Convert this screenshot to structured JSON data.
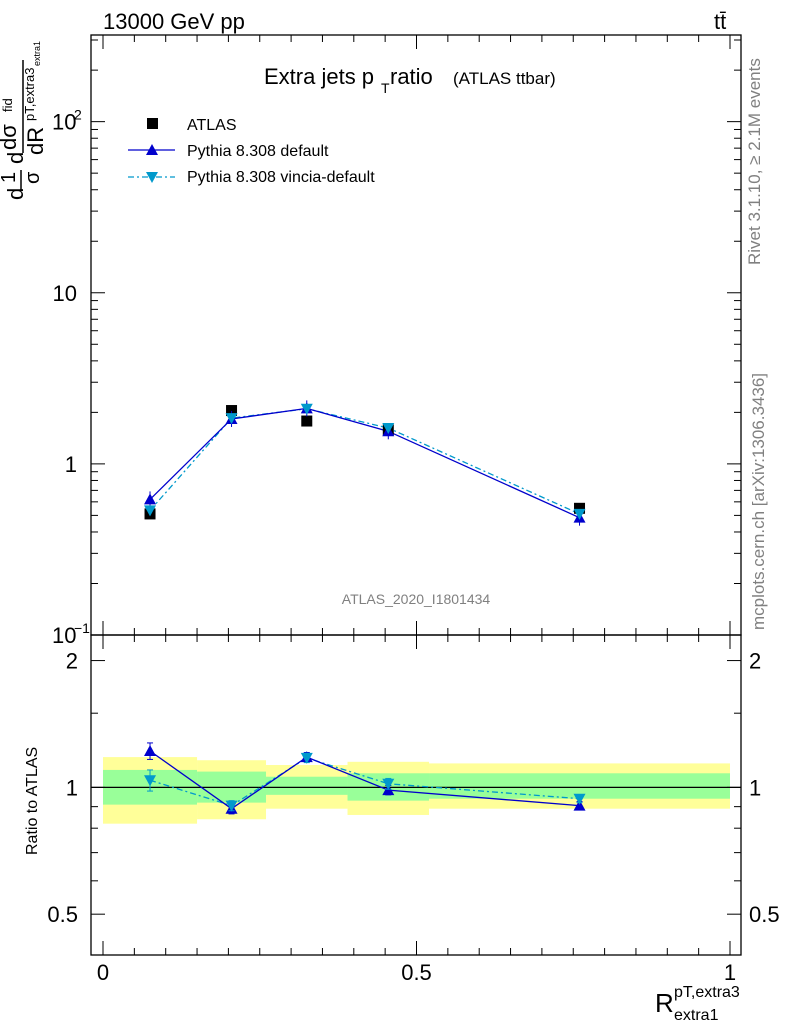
{
  "header": {
    "left": "13000 GeV pp",
    "right": "tt̄",
    "title_main": "Extra jets p",
    "title_sub": "T",
    "title_rest": " ratio",
    "title_small": "(ATLAS ttbar)",
    "analysis_id": "ATLAS_2020_I1801434",
    "side_top": "Rivet 3.1.10, ≥ 2.1M events",
    "side_bottom": "mcplots.cern.ch [arXiv:1306.3436]"
  },
  "axes": {
    "main_ylabel_parts": [
      "1",
      "σ",
      "dσ",
      "fid",
      "dR",
      "pT,extra3",
      "extra1",
      "d",
      "d"
    ],
    "ratio_ylabel": "Ratio to ATLAS",
    "xlabel_main": "R",
    "xlabel_sup": "pT,extra3",
    "xlabel_sub": "extra1",
    "main_yticks": [
      {
        "label": "10",
        "exp": "−1",
        "value": 0.1
      },
      {
        "label": "1",
        "exp": "",
        "value": 1
      },
      {
        "label": "10",
        "exp": "",
        "value": 10
      },
      {
        "label": "10",
        "exp": "2",
        "value": 100
      }
    ],
    "ratio_yticks": [
      {
        "label": "0.5",
        "value": 0.5
      },
      {
        "label": "1",
        "value": 1
      },
      {
        "label": "2",
        "value": 2
      }
    ],
    "xticks": [
      {
        "label": "0",
        "value": 0
      },
      {
        "label": "0.5",
        "value": 0.5
      },
      {
        "label": "1",
        "value": 1
      }
    ]
  },
  "legend": {
    "atlas": "ATLAS",
    "default": "Pythia 8.308 default",
    "vincia": "Pythia 8.308 vincia-default"
  },
  "chart_data": {
    "type": "line",
    "title": "Extra jets pT ratio (ATLAS ttbar)",
    "xlabel": "R extra1 pT,extra3",
    "ylabel": "1/σ dσ fid / dR",
    "xlim": [
      0,
      1
    ],
    "ylim": [
      0.1,
      300
    ],
    "yscale": "log",
    "ratio_ylim": [
      0.4,
      2.3
    ],
    "bins": [
      [
        0.0,
        0.15
      ],
      [
        0.15,
        0.26
      ],
      [
        0.26,
        0.39
      ],
      [
        0.39,
        0.52
      ],
      [
        0.52,
        1.0
      ]
    ],
    "x": [
      0.075,
      0.205,
      0.325,
      0.455,
      0.76
    ],
    "series": [
      {
        "name": "ATLAS",
        "color": "#000000",
        "values": [
          0.51,
          2.05,
          1.78,
          1.58,
          0.55
        ]
      },
      {
        "name": "Pythia 8.308 default",
        "color": "#0000cc",
        "values": [
          0.62,
          1.83,
          2.11,
          1.55,
          0.485
        ],
        "ratio": [
          1.22,
          0.89,
          1.18,
          0.985,
          0.905
        ],
        "ratio_err": [
          0.055,
          0.025,
          0.03,
          0.025,
          0.02
        ]
      },
      {
        "name": "Pythia 8.308 vincia-default",
        "color": "#0099cc",
        "values": [
          0.535,
          1.85,
          2.1,
          1.62,
          0.51
        ],
        "ratio": [
          1.04,
          0.905,
          1.175,
          1.02,
          0.94
        ],
        "ratio_err": [
          0.06,
          0.025,
          0.03,
          0.03,
          0.02
        ]
      }
    ],
    "ratio_band_green": [
      [
        0.91,
        1.1
      ],
      [
        0.92,
        1.09
      ],
      [
        0.96,
        1.06
      ],
      [
        0.93,
        1.08
      ],
      [
        0.94,
        1.08
      ]
    ],
    "ratio_band_yellow": [
      [
        0.82,
        1.18
      ],
      [
        0.84,
        1.16
      ],
      [
        0.89,
        1.13
      ],
      [
        0.86,
        1.15
      ],
      [
        0.89,
        1.14
      ]
    ],
    "grid": false,
    "legend_position": "top-left"
  }
}
